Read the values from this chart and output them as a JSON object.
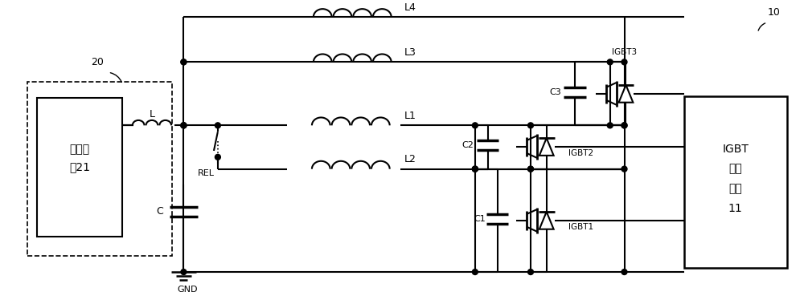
{
  "bg_color": "#ffffff",
  "lc": "#000000",
  "lw": 1.5,
  "fig_w": 10.0,
  "fig_h": 3.74,
  "supply_text": [
    "供电电",
    "源21"
  ],
  "igbt_text": [
    "IGBT",
    "驱动",
    "单元",
    "11"
  ],
  "label_20": "20",
  "label_10": "10",
  "label_L": "L",
  "label_C": "C",
  "label_GND": "GND",
  "label_REL": "REL",
  "label_L1": "L1",
  "label_L2": "L2",
  "label_L3": "L3",
  "label_L4": "L4",
  "label_C1": "C1",
  "label_C2": "C2",
  "label_C3": "C3",
  "label_IGBT1": "IGBT1",
  "label_IGBT2": "IGBT2",
  "label_IGBT3": "IGBT3"
}
